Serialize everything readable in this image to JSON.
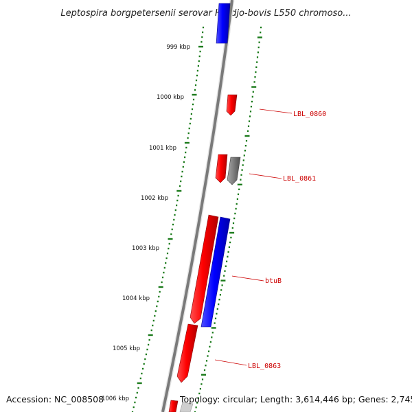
{
  "title": "Leptospira borgpetersenii serovar Hardjo-bovis L550 chromoso...",
  "footer": {
    "accession": "Accession: NC_008508",
    "topology": "Topology: circular; Length: 3,614,446 bp; Genes: 2,745"
  },
  "colors": {
    "forward_gene": "#ff0000",
    "reverse_gene": "#0000ff",
    "other_gene": "#808080",
    "ruler_ticks": "#1a7a1a",
    "backbone": "#7a7a7a",
    "gene_label": "#cc0000"
  },
  "ruler": {
    "kbp_labels": [
      "999 kbp",
      "1000 kbp",
      "1001 kbp",
      "1002 kbp",
      "1003 kbp",
      "1004 kbp",
      "1005 kbp",
      "1006 kbp"
    ]
  },
  "gene_labels": [
    "LBL_0860",
    "LBL_0861",
    "btuB",
    "LBL_0863"
  ]
}
